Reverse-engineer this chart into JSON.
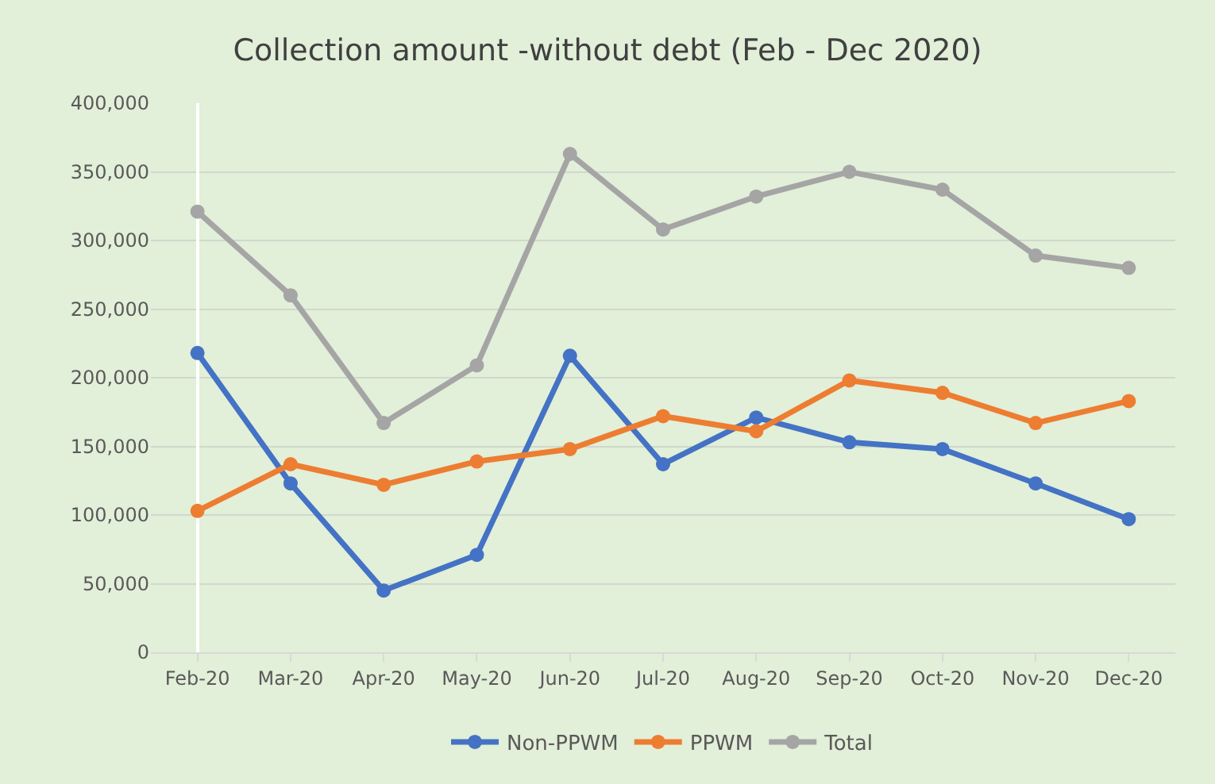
{
  "chart_data": {
    "type": "line",
    "title": "Collection amount -without debt (Feb - Dec 2020)",
    "categories": [
      "Feb-20",
      "Mar-20",
      "Apr-20",
      "May-20",
      "Jun-20",
      "Jul-20",
      "Aug-20",
      "Sep-20",
      "Oct-20",
      "Nov-20",
      "Dec-20"
    ],
    "series": [
      {
        "name": "Non-PPWM",
        "color": "#4472c4",
        "values": [
          218000,
          123000,
          45000,
          71000,
          216000,
          137000,
          171000,
          153000,
          148000,
          123000,
          97000
        ]
      },
      {
        "name": "PPWM",
        "color": "#ed7d31",
        "values": [
          103000,
          137000,
          122000,
          139000,
          148000,
          172000,
          161000,
          198000,
          189000,
          167000,
          183000
        ]
      },
      {
        "name": "Total",
        "color": "#a5a5a5",
        "values": [
          321000,
          260000,
          167000,
          209000,
          363000,
          308000,
          332000,
          350000,
          337000,
          289000,
          280000
        ]
      }
    ],
    "ylim": [
      0,
      400000
    ],
    "yticks": [
      {
        "value": 0,
        "label": "0"
      },
      {
        "value": 50000,
        "label": "50,000"
      },
      {
        "value": 100000,
        "label": "100,000"
      },
      {
        "value": 150000,
        "label": "150,000"
      },
      {
        "value": 200000,
        "label": "200,000"
      },
      {
        "value": 250000,
        "label": "250,000"
      },
      {
        "value": 300000,
        "label": "300,000"
      },
      {
        "value": 350000,
        "label": "350,000"
      },
      {
        "value": 400000,
        "label": "400,000"
      }
    ],
    "grid": "y",
    "legend": "bottom",
    "marker": "circle",
    "line_style": "solid"
  }
}
